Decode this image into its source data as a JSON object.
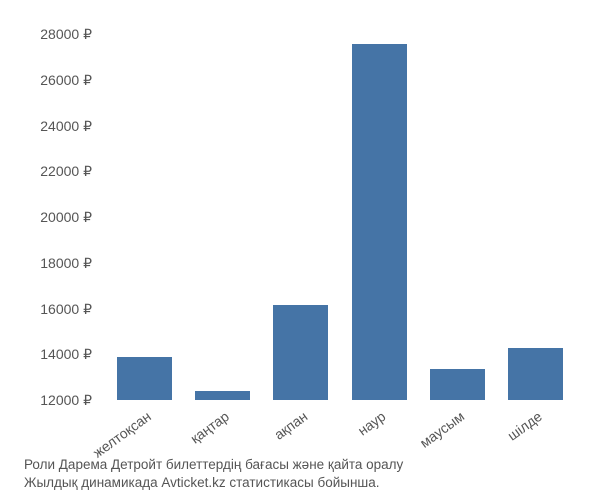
{
  "chart": {
    "type": "bar",
    "background_color": "#ffffff",
    "bar_color": "#4574a6",
    "text_color": "#555555",
    "bar_width": 0.7,
    "label_fontsize": 14,
    "caption_fontsize": 13.5,
    "x_label_rotation_deg": -36,
    "ylim": [
      12000,
      28000
    ],
    "ytick_step": 2000,
    "yticks": [
      "28000 ₽",
      "26000 ₽",
      "24000 ₽",
      "22000 ₽",
      "20000 ₽",
      "18000 ₽",
      "16000 ₽",
      "14000 ₽",
      "12000 ₽"
    ],
    "categories": [
      "желтоқсан",
      "қаңтар",
      "ақпан",
      "наур",
      "маусым",
      "шілде"
    ],
    "values": [
      13800,
      12400,
      16000,
      27000,
      13300,
      14200
    ],
    "caption_line1": "Роли Дарема Детройт билеттердің бағасы және қайта оралу",
    "caption_line2": "Жылдық динамикада Avticket.kz статистикасы бойынша."
  }
}
